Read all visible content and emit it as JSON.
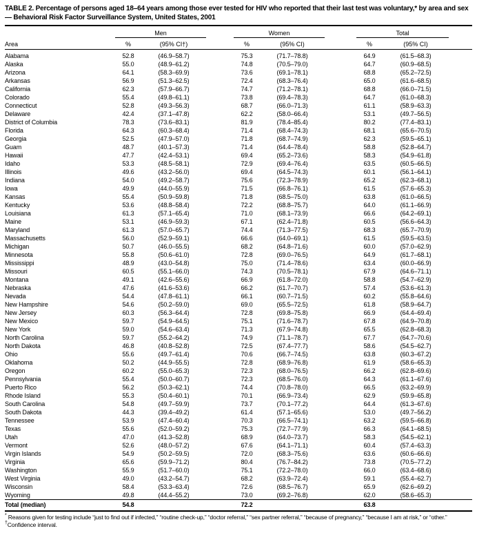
{
  "table": {
    "title": "TABLE 2. Percentage of persons aged 18–64 years among those ever tested for HIV who reported that their last test was voluntary,* by area and sex — Behavioral Risk Factor Surveillance System, United States, 2001",
    "area_header": "Area",
    "column_groups": [
      {
        "label": "Men",
        "pct_header": "%",
        "ci_header": "(95% CI†)"
      },
      {
        "label": "Women",
        "pct_header": "%",
        "ci_header": "(95% CI)"
      },
      {
        "label": "Total",
        "pct_header": "%",
        "ci_header": "(95% CI)"
      }
    ],
    "rows": [
      [
        "Alabama",
        "52.8",
        "(46.9–58.7)",
        "75.3",
        "(71.7–78.8)",
        "64.9",
        "(61.5–68.3)"
      ],
      [
        "Alaska",
        "55.0",
        "(48.9–61.2)",
        "74.8",
        "(70.5–79.0)",
        "64.7",
        "(60.9–68.5)"
      ],
      [
        "Arizona",
        "64.1",
        "(58.3–69.9)",
        "73.6",
        "(69.1–78.1)",
        "68.8",
        "(65.2–72.5)"
      ],
      [
        "Arkansas",
        "56.9",
        "(51.3–62.5)",
        "72.4",
        "(68.3–76.4)",
        "65.0",
        "(61.6–68.5)"
      ],
      [
        "California",
        "62.3",
        "(57.9–66.7)",
        "74.7",
        "(71.2–78.1)",
        "68.8",
        "(66.0–71.5)"
      ],
      [
        "Colorado",
        "55.4",
        "(49.8–61.1)",
        "73.8",
        "(69.4–78.3)",
        "64.7",
        "(61.0–68.3)"
      ],
      [
        "Connecticut",
        "52.8",
        "(49.3–56.3)",
        "68.7",
        "(66.0–71.3)",
        "61.1",
        "(58.9–63.3)"
      ],
      [
        "Delaware",
        "42.4",
        "(37.1–47.8)",
        "62.2",
        "(58.0–66.4)",
        "53.1",
        "(49.7–56.5)"
      ],
      [
        "District of Columbia",
        "78.3",
        "(73.6–83.1)",
        "81.9",
        "(78.4–85.4)",
        "80.2",
        "(77.4–83.1)"
      ],
      [
        "Florida",
        "64.3",
        "(60.3–68.4)",
        "71.4",
        "(68.4–74.3)",
        "68.1",
        "(65.6–70.5)"
      ],
      [
        "Georgia",
        "52.5",
        "(47.9–57.0)",
        "71.8",
        "(68.7–74.9)",
        "62.3",
        "(59.5–65.1)"
      ],
      [
        "Guam",
        "48.7",
        "(40.1–57.3)",
        "71.4",
        "(64.4–78.4)",
        "58.8",
        "(52.8–64.7)"
      ],
      [
        "Hawaii",
        "47.7",
        "(42.4–53.1)",
        "69.4",
        "(65.2–73.6)",
        "58.3",
        "(54.9–61.8)"
      ],
      [
        "Idaho",
        "53.3",
        "(48.5–58.1)",
        "72.9",
        "(69.4–76.4)",
        "63.5",
        "(60.5–66.5)"
      ],
      [
        "Illinois",
        "49.6",
        "(43.2–56.0)",
        "69.4",
        "(64.5–74.3)",
        "60.1",
        "(56.1–64.1)"
      ],
      [
        "Indiana",
        "54.0",
        "(49.2–58.7)",
        "75.6",
        "(72.3–78.9)",
        "65.2",
        "(62.3–68.1)"
      ],
      [
        "Iowa",
        "49.9",
        "(44.0–55.9)",
        "71.5",
        "(66.8–76.1)",
        "61.5",
        "(57.6–65.3)"
      ],
      [
        "Kansas",
        "55.4",
        "(50.9–59.8)",
        "71.8",
        "(68.5–75.0)",
        "63.8",
        "(61.0–66.5)"
      ],
      [
        "Kentucky",
        "53.6",
        "(48.8–58.4)",
        "72.2",
        "(68.8–75.7)",
        "64.0",
        "(61.1–66.9)"
      ],
      [
        "Louisiana",
        "61.3",
        "(57.1–65.4)",
        "71.0",
        "(68.1–73.9)",
        "66.6",
        "(64.2–69.1)"
      ],
      [
        "Maine",
        "53.1",
        "(46.9–59.3)",
        "67.1",
        "(62.4–71.8)",
        "60.5",
        "(56.6–64.3)"
      ],
      [
        "Maryland",
        "61.3",
        "(57.0–65.7)",
        "74.4",
        "(71.3–77.5)",
        "68.3",
        "(65.7–70.9)"
      ],
      [
        "Massachusetts",
        "56.0",
        "(52.9–59.1)",
        "66.6",
        "(64.0–69.1)",
        "61.5",
        "(59.5–63.5)"
      ],
      [
        "Michigan",
        "50.7",
        "(46.0–55.5)",
        "68.2",
        "(64.8–71.6)",
        "60.0",
        "(57.0–62.9)"
      ],
      [
        "Minnesota",
        "55.8",
        "(50.6–61.0)",
        "72.8",
        "(69.0–76.5)",
        "64.9",
        "(61.7–68.1)"
      ],
      [
        "Mississippi",
        "48.9",
        "(43.0–54.8)",
        "75.0",
        "(71.4–78.6)",
        "63.4",
        "(60.0–66.9)"
      ],
      [
        "Missouri",
        "60.5",
        "(55.1–66.0)",
        "74.3",
        "(70.5–78.1)",
        "67.9",
        "(64.6–71.1)"
      ],
      [
        "Montana",
        "49.1",
        "(42.6–55.6)",
        "66.9",
        "(61.8–72.0)",
        "58.8",
        "(54.7–62.9)"
      ],
      [
        "Nebraska",
        "47.6",
        "(41.6–53.6)",
        "66.2",
        "(61.7–70.7)",
        "57.4",
        "(53.6–61.3)"
      ],
      [
        "Nevada",
        "54.4",
        "(47.8–61.1)",
        "66.1",
        "(60.7–71.5)",
        "60.2",
        "(55.8–64.6)"
      ],
      [
        "New Hampshire",
        "54.6",
        "(50.2–59.0)",
        "69.0",
        "(65.5–72.5)",
        "61.8",
        "(58.9–64.7)"
      ],
      [
        "New Jersey",
        "60.3",
        "(56.3–64.4)",
        "72.8",
        "(69.8–75.8)",
        "66.9",
        "(64.4–69.4)"
      ],
      [
        "New Mexico",
        "59.7",
        "(54.9–64.5)",
        "75.1",
        "(71.6–78.7)",
        "67.8",
        "(64.9–70.8)"
      ],
      [
        "New York",
        "59.0",
        "(54.6–63.4)",
        "71.3",
        "(67.9–74.8)",
        "65.5",
        "(62.8–68.3)"
      ],
      [
        "North Carolina",
        "59.7",
        "(55.2–64.2)",
        "74.9",
        "(71.1–78.7)",
        "67.7",
        "(64.7–70.6)"
      ],
      [
        "North Dakota",
        "46.8",
        "(40.8–52.8)",
        "72.5",
        "(67.4–77.7)",
        "58.6",
        "(54.5–62.7)"
      ],
      [
        "Ohio",
        "55.6",
        "(49.7–61.4)",
        "70.6",
        "(66.7–74.5)",
        "63.8",
        "(60.3–67.2)"
      ],
      [
        "Oklahoma",
        "50.2",
        "(44.9–55.5)",
        "72.8",
        "(68.9–76.8)",
        "61.9",
        "(58.6–65.3)"
      ],
      [
        "Oregon",
        "60.2",
        "(55.0–65.3)",
        "72.3",
        "(68.0–76.5)",
        "66.2",
        "(62.8–69.6)"
      ],
      [
        "Pennsylvania",
        "55.4",
        "(50.0–60.7)",
        "72.3",
        "(68.5–76.0)",
        "64.3",
        "(61.1–67.6)"
      ],
      [
        "Puerto Rico",
        "56.2",
        "(50.3–62.1)",
        "74.4",
        "(70.8–78.0)",
        "66.5",
        "(63.2–69.9)"
      ],
      [
        "Rhode Island",
        "55.3",
        "(50.4–60.1)",
        "70.1",
        "(66.9–73.4)",
        "62.9",
        "(59.9–65.8)"
      ],
      [
        "South Carolina",
        "54.8",
        "(49.7–59.9)",
        "73.7",
        "(70.1–77.2)",
        "64.4",
        "(61.3–67.6)"
      ],
      [
        "South Dakota",
        "44.3",
        "(39.4–49.2)",
        "61.4",
        "(57.1–65.6)",
        "53.0",
        "(49.7–56.2)"
      ],
      [
        "Tennessee",
        "53.9",
        "(47.4–60.4)",
        "70.3",
        "(66.5–74.1)",
        "63.2",
        "(59.5–66.8)"
      ],
      [
        "Texas",
        "55.6",
        "(52.0–59.2)",
        "75.3",
        "(72.7–77.9)",
        "66.3",
        "(64.1–68.5)"
      ],
      [
        "Utah",
        "47.0",
        "(41.3–52.8)",
        "68.9",
        "(64.0–73.7)",
        "58.3",
        "(54.5–62.1)"
      ],
      [
        "Vermont",
        "52.6",
        "(48.0–57.2)",
        "67.6",
        "(64.1–71.1)",
        "60.4",
        "(57.4–63.3)"
      ],
      [
        "Virgin Islands",
        "54.9",
        "(50.2–59.5)",
        "72.0",
        "(68.3–75.6)",
        "63.6",
        "(60.6–66.6)"
      ],
      [
        "Virginia",
        "65.6",
        "(59.9–71.2)",
        "80.4",
        "(76.7–84.2)",
        "73.8",
        "(70.5–77.2)"
      ],
      [
        "Washington",
        "55.9",
        "(51.7–60.0)",
        "75.1",
        "(72.2–78.0)",
        "66.0",
        "(63.4–68.6)"
      ],
      [
        "West Virginia",
        "49.0",
        "(43.2–54.7)",
        "68.2",
        "(63.9–72.4)",
        "59.1",
        "(55.4–62.7)"
      ],
      [
        "Wisconsin",
        "58.4",
        "(53.3–63.4)",
        "72.6",
        "(68.5–76.7)",
        "65.9",
        "(62.6–69.2)"
      ],
      [
        "Wyoming",
        "49.8",
        "(44.4–55.2)",
        "73.0",
        "(69.2–76.8)",
        "62.0",
        "(58.6–65.3)"
      ]
    ],
    "total_row": {
      "area": "Total (median)",
      "men_pct": "54.8",
      "women_pct": "72.2",
      "total_pct": "63.8"
    },
    "footnotes": [
      {
        "marker": "*",
        "text": " Reasons given for testing include “just to find out if infected,” “routine check-up,” “doctor referral,” “sex partner referral,” “because of pregnancy,” “because I am at risk,” or “other.”"
      },
      {
        "marker": "†",
        "text": "Confidence interval."
      }
    ]
  }
}
